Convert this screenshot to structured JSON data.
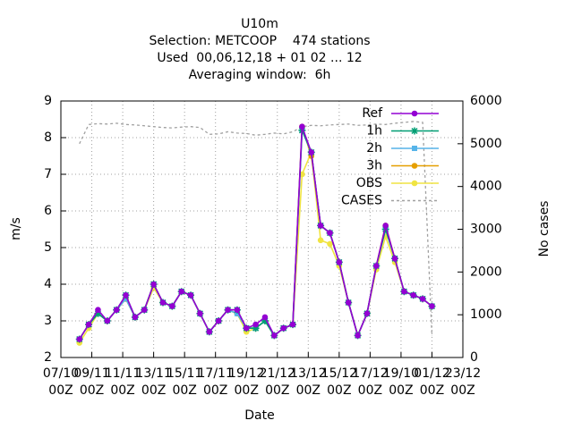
{
  "chart_data": {
    "type": "line",
    "title": [
      "U10m",
      "Selection: METCOOP    474 stations",
      "Used  00,06,12,18 + 01 02 ... 12",
      "Averaging window:  6h"
    ],
    "x_label": "Date",
    "y_label": "m/s",
    "y2_label": "No cases",
    "x": [
      0.6,
      0.9,
      1.2,
      1.5,
      1.8,
      2.1,
      2.4,
      2.7,
      3.0,
      3.3,
      3.6,
      3.9,
      4.2,
      4.5,
      4.8,
      5.1,
      5.4,
      5.7,
      6.0,
      6.3,
      6.6,
      6.9,
      7.2,
      7.5,
      7.8,
      8.1,
      8.4,
      8.7,
      9.0,
      9.3,
      9.6,
      9.9,
      10.2,
      10.5,
      10.8,
      11.1,
      11.4,
      11.7,
      12.0
    ],
    "series": [
      {
        "name": "Ref",
        "color": "#9400d3",
        "marker": "circle",
        "values": [
          2.5,
          2.9,
          3.3,
          3.0,
          3.3,
          3.7,
          3.1,
          3.3,
          4.0,
          3.5,
          3.4,
          3.8,
          3.7,
          3.2,
          2.7,
          3.0,
          3.3,
          3.3,
          2.8,
          2.9,
          3.1,
          2.6,
          2.8,
          2.9,
          8.3,
          7.6,
          5.6,
          5.4,
          4.6,
          3.5,
          2.6,
          3.2,
          4.5,
          5.6,
          4.7,
          3.8,
          3.7,
          3.6,
          3.4
        ]
      },
      {
        "name": "1h",
        "color": "#009e73",
        "marker": "star",
        "values": [
          2.5,
          2.9,
          3.2,
          3.0,
          3.3,
          3.7,
          3.1,
          3.3,
          4.0,
          3.5,
          3.4,
          3.8,
          3.7,
          3.2,
          2.7,
          3.0,
          3.3,
          3.3,
          2.8,
          2.8,
          3.0,
          2.6,
          2.8,
          2.9,
          8.2,
          7.6,
          5.6,
          5.4,
          4.6,
          3.5,
          2.6,
          3.2,
          4.5,
          5.5,
          4.7,
          3.8,
          3.7,
          3.6,
          3.4
        ]
      },
      {
        "name": "2h",
        "color": "#56b4e9",
        "marker": "square",
        "values": [
          2.5,
          2.9,
          3.2,
          3.0,
          3.3,
          3.6,
          3.1,
          3.3,
          4.0,
          3.5,
          3.4,
          3.8,
          3.7,
          3.2,
          2.7,
          3.0,
          3.3,
          3.2,
          2.8,
          2.8,
          3.0,
          2.6,
          2.8,
          2.9,
          8.2,
          7.6,
          5.6,
          5.4,
          4.6,
          3.5,
          2.6,
          3.2,
          4.5,
          5.5,
          4.7,
          3.8,
          3.7,
          3.6,
          3.4
        ]
      },
      {
        "name": "3h",
        "color": "#e69f00",
        "marker": "circle",
        "values": [
          2.5,
          2.9,
          3.2,
          3.0,
          3.3,
          3.6,
          3.1,
          3.3,
          4.0,
          3.5,
          3.4,
          3.8,
          3.7,
          3.2,
          2.7,
          3.0,
          3.3,
          3.2,
          2.8,
          2.8,
          3.0,
          2.6,
          2.8,
          2.9,
          8.3,
          7.5,
          5.6,
          5.4,
          4.6,
          3.5,
          2.6,
          3.2,
          4.5,
          5.6,
          4.7,
          3.8,
          3.7,
          3.6,
          3.4
        ]
      },
      {
        "name": "OBS",
        "color": "#f0e442",
        "marker": "circle",
        "values": [
          2.4,
          2.8,
          3.2,
          3.0,
          3.3,
          3.6,
          3.1,
          3.3,
          3.9,
          3.5,
          3.4,
          3.8,
          3.7,
          3.2,
          2.7,
          3.0,
          3.3,
          3.2,
          2.7,
          2.8,
          3.0,
          2.6,
          2.8,
          2.9,
          7.0,
          7.6,
          5.2,
          5.1,
          4.5,
          3.5,
          2.6,
          3.2,
          4.4,
          5.3,
          4.6,
          3.8,
          3.7,
          3.6,
          3.4
        ]
      },
      {
        "name": "CASES",
        "color": "#a0a0a0",
        "dashed": true,
        "axis": "y2",
        "values": [
          5000,
          5450,
          5470,
          5460,
          5480,
          5450,
          5440,
          5420,
          5400,
          5380,
          5370,
          5390,
          5400,
          5380,
          5220,
          5230,
          5280,
          5250,
          5240,
          5200,
          5220,
          5250,
          5230,
          5280,
          5400,
          5430,
          5420,
          5440,
          5450,
          5460,
          5430,
          5440,
          5460,
          5450,
          5480,
          5500,
          5520,
          5500,
          500
        ]
      }
    ],
    "xlim": [
      0,
      13
    ],
    "xticks": [
      {
        "value": 0,
        "label": "07/10 00Z"
      },
      {
        "value": 1,
        "label": "09/11 00Z"
      },
      {
        "value": 2,
        "label": "11/11 00Z"
      },
      {
        "value": 3,
        "label": "13/11 00Z"
      },
      {
        "value": 4,
        "label": "15/11 00Z"
      },
      {
        "value": 5,
        "label": "17/11 00Z"
      },
      {
        "value": 6,
        "label": "19/12 00Z"
      },
      {
        "value": 7,
        "label": "21/12 00Z"
      },
      {
        "value": 8,
        "label": "13/12 00Z"
      },
      {
        "value": 9,
        "label": "15/12 00Z"
      },
      {
        "value": 10,
        "label": "17/12 00Z"
      },
      {
        "value": 11,
        "label": "19/10 00Z"
      },
      {
        "value": 12,
        "label": "01/12 00Z"
      },
      {
        "value": 13,
        "label": "23/12 00Z"
      }
    ],
    "ylim": [
      2,
      9
    ],
    "yticks": [
      2,
      3,
      4,
      5,
      6,
      7,
      8,
      9
    ],
    "y2lim": [
      0,
      6000
    ],
    "y2ticks": [
      0,
      1000,
      2000,
      3000,
      4000,
      5000,
      6000
    ],
    "grid": true,
    "legend": "upper right"
  }
}
